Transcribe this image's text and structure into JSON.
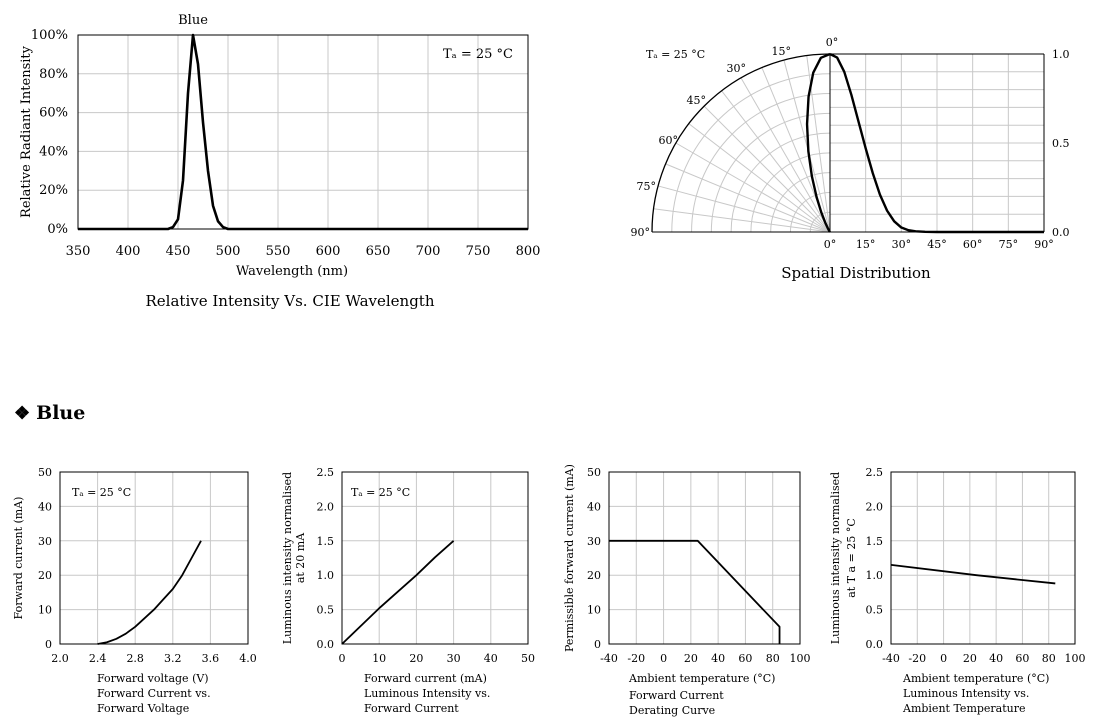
{
  "section": {
    "glyph": "❖",
    "title": "Blue"
  },
  "chart_data": [
    {
      "id": "spectrum",
      "type": "line",
      "series": [
        {
          "name": "Blue",
          "x": [
            350,
            420,
            430,
            440,
            445,
            450,
            455,
            460,
            465,
            470,
            475,
            480,
            485,
            490,
            495,
            500,
            510,
            550,
            600,
            650,
            700,
            750,
            800
          ],
          "y": [
            0,
            0,
            0,
            0,
            1,
            5,
            25,
            70,
            100,
            85,
            55,
            30,
            12,
            4,
            1,
            0,
            0,
            0,
            0,
            0,
            0,
            0,
            0
          ]
        }
      ],
      "annotation": "Tₐ = 25 °C",
      "title": "Relative Intensity Vs. CIE Wavelength",
      "xlabel": "Wavelength (nm)",
      "ylabel": "Relative Radiant Intensity",
      "xlim": [
        350,
        800
      ],
      "ylim": [
        0,
        100
      ],
      "xticks": [
        "350",
        "400",
        "450",
        "500",
        "550",
        "600",
        "650",
        "700",
        "750",
        "800"
      ],
      "yticks": [
        "0%",
        "20%",
        "40%",
        "60%",
        "80%",
        "100%"
      ],
      "grid": true
    },
    {
      "id": "spatial",
      "type": "line",
      "title": "Spatial Distribution",
      "annotation": "Tₐ = 25 °C",
      "polar_angle_labels": [
        "0°",
        "15°",
        "30°",
        "45°",
        "60°",
        "75°",
        "90°"
      ],
      "bottom_axis_labels": [
        "0°",
        "15°",
        "30°",
        "45°",
        "60°",
        "75°",
        "90°"
      ],
      "right_axis_labels": [
        "0.0",
        "0.5",
        "1.0"
      ],
      "angles_deg": [
        0,
        3,
        6,
        9,
        12,
        15,
        18,
        21,
        24,
        27,
        30,
        33,
        36,
        40,
        45,
        50,
        60,
        70,
        80,
        90
      ],
      "relative_intensity": [
        1.0,
        0.98,
        0.9,
        0.77,
        0.62,
        0.47,
        0.33,
        0.21,
        0.12,
        0.06,
        0.025,
        0.01,
        0.004,
        0.001,
        0,
        0,
        0,
        0,
        0,
        0
      ],
      "grid": true
    },
    {
      "id": "iv",
      "type": "line",
      "x": [
        2.4,
        2.5,
        2.6,
        2.7,
        2.8,
        2.9,
        3.0,
        3.1,
        3.2,
        3.3,
        3.4,
        3.5
      ],
      "y": [
        0,
        0.5,
        1.5,
        3,
        5,
        7.5,
        10,
        13,
        16,
        20,
        25,
        30
      ],
      "annotation": "Tₐ = 25 °C",
      "xlabel": "Forward voltage (V)",
      "ylabel": "Forward current (mA)",
      "caption": [
        "Forward Current vs.",
        "Forward Voltage"
      ],
      "xlim": [
        2.0,
        4.0
      ],
      "ylim": [
        0,
        50
      ],
      "xticks": [
        "2.0",
        "2.4",
        "2.8",
        "3.2",
        "3.6",
        "4.0"
      ],
      "yticks": [
        "0",
        "10",
        "20",
        "30",
        "40",
        "50"
      ],
      "grid": true
    },
    {
      "id": "li",
      "type": "line",
      "x": [
        0,
        5,
        10,
        15,
        20,
        25,
        30
      ],
      "y": [
        0,
        0.26,
        0.52,
        0.76,
        1.0,
        1.26,
        1.5
      ],
      "annotation": "Tₐ = 25 °C",
      "xlabel": "Forward current (mA)",
      "ylabel": [
        "Luminous intensity normalised",
        "at 20 mA"
      ],
      "caption": [
        "Luminous Intensity vs.",
        "Forward Current"
      ],
      "xlim": [
        0,
        50
      ],
      "ylim": [
        0,
        2.5
      ],
      "xticks": [
        "0",
        "10",
        "20",
        "30",
        "40",
        "50"
      ],
      "yticks": [
        "0.0",
        "0.5",
        "1.0",
        "1.5",
        "2.0",
        "2.5"
      ],
      "grid": true
    },
    {
      "id": "derating",
      "type": "line",
      "x": [
        -40,
        25,
        85,
        85
      ],
      "y": [
        30,
        30,
        5,
        0
      ],
      "xlabel": "Ambient temperature (°C)",
      "ylabel": "Permissible forward current (mA)",
      "caption": [
        "Forward Current",
        "Derating  Curve"
      ],
      "xlim": [
        -40,
        100
      ],
      "ylim": [
        0,
        50
      ],
      "xticks": [
        "-40",
        "-20",
        "0",
        "20",
        "40",
        "60",
        "80",
        "100"
      ],
      "yticks": [
        "0",
        "10",
        "20",
        "30",
        "40",
        "50"
      ],
      "grid": true
    },
    {
      "id": "lt",
      "type": "line",
      "x": [
        -40,
        25,
        85
      ],
      "y": [
        1.15,
        1.0,
        0.88
      ],
      "xlabel": "Ambient temperature (°C)",
      "ylabel": [
        "Luminous intensity normalised",
        "at T a = 25 °C"
      ],
      "caption": [
        "Luminous Intensity vs.",
        "Ambient Temperature"
      ],
      "xlim": [
        -40,
        100
      ],
      "ylim": [
        0,
        2.5
      ],
      "xticks": [
        "-40",
        "-20",
        "0",
        "20",
        "40",
        "60",
        "80",
        "100"
      ],
      "yticks": [
        "0.0",
        "0.5",
        "1.0",
        "1.5",
        "2.0",
        "2.5"
      ],
      "grid": true
    }
  ]
}
